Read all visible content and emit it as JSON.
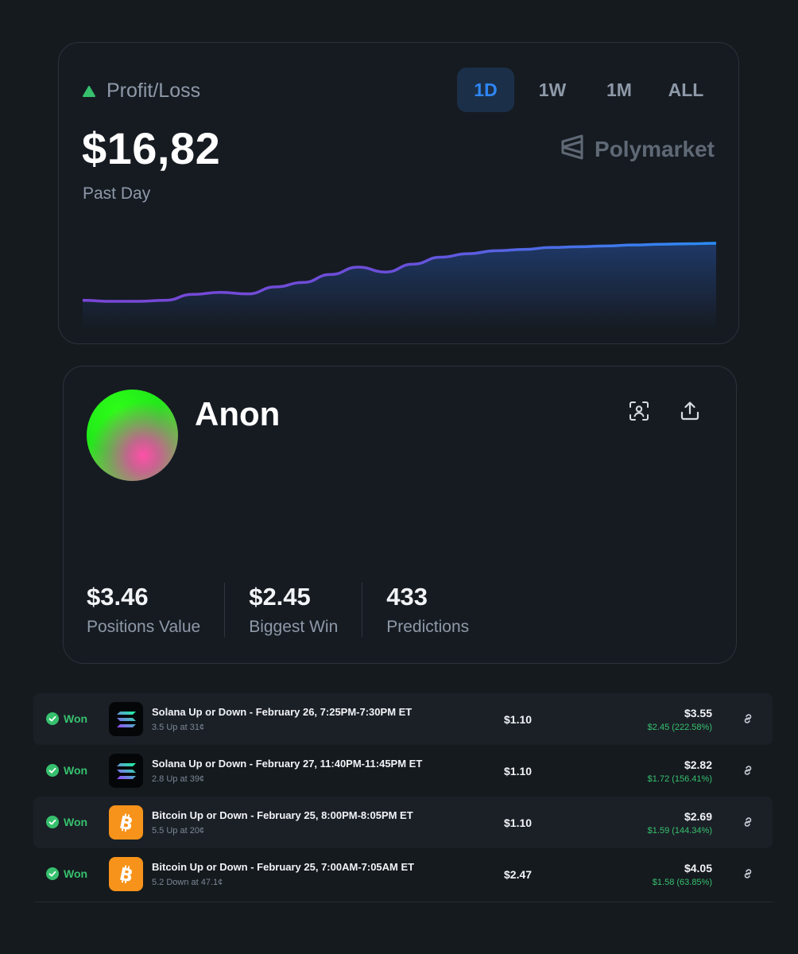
{
  "pnl": {
    "title": "Profit/Loss",
    "value": "$16,82",
    "period": "Past Day",
    "brand": "Polymarket",
    "tabs": [
      {
        "label": "1D",
        "active": true
      },
      {
        "label": "1W",
        "active": false
      },
      {
        "label": "1M",
        "active": false
      },
      {
        "label": "ALL",
        "active": false
      }
    ],
    "chart_data": {
      "type": "area",
      "x": [
        0,
        1,
        2,
        3,
        4,
        5,
        6,
        7,
        8,
        9,
        10,
        11,
        12,
        13,
        14,
        15,
        16,
        17,
        18,
        19,
        20,
        21,
        22,
        23
      ],
      "values": [
        0.4,
        0.0,
        0.0,
        0.4,
        2.8,
        3.6,
        3.0,
        5.8,
        7.6,
        10.8,
        13.8,
        11.8,
        15.0,
        17.8,
        19.2,
        20.4,
        20.9,
        21.7,
        22.0,
        22.3,
        22.7,
        23.0,
        23.2,
        23.4
      ],
      "colors": [
        "#7a46d8",
        "#2e6fe8",
        "#2b8cf5"
      ]
    }
  },
  "profile": {
    "name": "Anon",
    "stats": [
      {
        "value": "$3.46",
        "label": "Positions Value"
      },
      {
        "value": "$2.45",
        "label": "Biggest Win"
      },
      {
        "value": "433",
        "label": "Predictions"
      }
    ]
  },
  "positions": [
    {
      "status": "Won",
      "icon": "solana-logo-icon",
      "title": "Solana Up or Down - February 26, 7:25PM-7:30PM ET",
      "sub": "3.5 Up at 31¢",
      "cost": "$1.10",
      "value": "$3.55",
      "gain": "$2.45 (222.58%)"
    },
    {
      "status": "Won",
      "icon": "solana-logo-icon",
      "title": "Solana Up or Down - February 27, 11:40PM-11:45PM ET",
      "sub": "2.8 Up at 39¢",
      "cost": "$1.10",
      "value": "$2.82",
      "gain": "$1.72 (156.41%)"
    },
    {
      "status": "Won",
      "icon": "bitcoin-logo-icon",
      "title": "Bitcoin Up or Down - February 25, 8:00PM-8:05PM ET",
      "sub": "5.5 Up at 20¢",
      "cost": "$1.10",
      "value": "$2.69",
      "gain": "$1.59 (144.34%)"
    },
    {
      "status": "Won",
      "icon": "bitcoin-logo-icon",
      "title": "Bitcoin Up or Down - February 25, 7:00AM-7:05AM ET",
      "sub": "5.2 Down at 47.1¢",
      "cost": "$2.47",
      "value": "$4.05",
      "gain": "$1.58 (63.85%)"
    }
  ],
  "colors": {
    "accent": "#2e86f5",
    "positive": "#36c06d",
    "background": "#151a1f",
    "card": "#161b22"
  }
}
